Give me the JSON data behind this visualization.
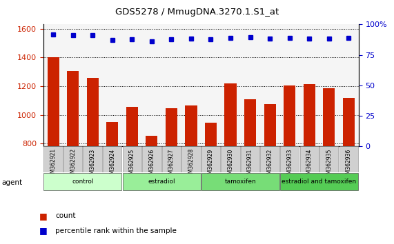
{
  "title": "GDS5278 / MmugDNA.3270.1.S1_at",
  "samples": [
    "GSM362921",
    "GSM362922",
    "GSM362923",
    "GSM362924",
    "GSM362925",
    "GSM362926",
    "GSM362927",
    "GSM362928",
    "GSM362929",
    "GSM362930",
    "GSM362931",
    "GSM362932",
    "GSM362933",
    "GSM362934",
    "GSM362935",
    "GSM362936"
  ],
  "counts": [
    1400,
    1305,
    1255,
    950,
    1055,
    855,
    1045,
    1065,
    945,
    1220,
    1110,
    1075,
    1205,
    1215,
    1185,
    1120
  ],
  "percentile_values": [
    1560,
    1555,
    1555,
    1520,
    1525,
    1510,
    1525,
    1530,
    1525,
    1535,
    1540,
    1530,
    1535,
    1530,
    1530,
    1535
  ],
  "ylim_left": [
    780,
    1630
  ],
  "ylim_right": [
    0,
    100
  ],
  "yticks_left": [
    800,
    1000,
    1200,
    1400,
    1600
  ],
  "yticks_right": [
    0,
    25,
    50,
    75,
    100
  ],
  "bar_color": "#cc2200",
  "dot_color": "#0000cc",
  "grid_color": "#000000",
  "bg_color": "#ffffff",
  "groups": [
    {
      "label": "control",
      "start": 0,
      "end": 4,
      "color": "#ccffcc"
    },
    {
      "label": "estradiol",
      "start": 4,
      "end": 8,
      "color": "#99ee99"
    },
    {
      "label": "tamoxifen",
      "start": 8,
      "end": 12,
      "color": "#77dd77"
    },
    {
      "label": "estradiol and tamoxifen",
      "start": 12,
      "end": 16,
      "color": "#55cc55"
    }
  ],
  "agent_label": "agent",
  "legend_count_label": "count",
  "legend_percentile_label": "percentile rank within the sample",
  "tick_label_color": "#cc2200",
  "right_axis_color": "#0000cc",
  "plot_bg": "#f5f5f5",
  "bar_width": 0.6
}
